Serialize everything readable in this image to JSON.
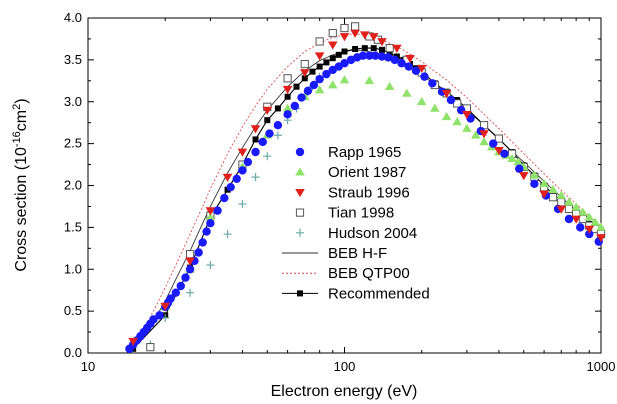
{
  "chart_data": {
    "type": "scatter",
    "title": "",
    "xlabel": "Electron energy (eV)",
    "ylabel": {
      "prefix": "Cross section (10",
      "exp1": "-16",
      "mid": "cm",
      "exp2": "2",
      "suffix": ")"
    },
    "xscale": "log",
    "xlim": [
      10,
      1000
    ],
    "ylim": [
      0.0,
      4.0
    ],
    "x_ticks": [
      "10",
      "100",
      "1000"
    ],
    "y_ticks": [
      "0.0",
      "0.5",
      "1.0",
      "1.5",
      "2.0",
      "2.5",
      "3.0",
      "3.5",
      "4.0"
    ],
    "legend_position": "center",
    "series": [
      {
        "name": "Rapp 1965",
        "marker": "circle",
        "color": "#1a1aff",
        "points": [
          [
            14.5,
            0.05
          ],
          [
            15,
            0.1
          ],
          [
            15.5,
            0.15
          ],
          [
            16,
            0.2
          ],
          [
            16.5,
            0.25
          ],
          [
            17,
            0.3
          ],
          [
            17.5,
            0.35
          ],
          [
            18,
            0.4
          ],
          [
            19,
            0.45
          ],
          [
            20,
            0.55
          ],
          [
            20.5,
            0.6
          ],
          [
            21,
            0.65
          ],
          [
            22,
            0.72
          ],
          [
            23,
            0.8
          ],
          [
            24,
            0.9
          ],
          [
            25,
            1.0
          ],
          [
            26,
            1.1
          ],
          [
            27,
            1.2
          ],
          [
            28,
            1.32
          ],
          [
            29,
            1.45
          ],
          [
            30,
            1.55
          ],
          [
            32,
            1.7
          ],
          [
            34,
            1.85
          ],
          [
            36,
            1.98
          ],
          [
            38,
            2.08
          ],
          [
            40,
            2.18
          ],
          [
            42,
            2.28
          ],
          [
            45,
            2.4
          ],
          [
            48,
            2.52
          ],
          [
            51,
            2.62
          ],
          [
            55,
            2.72
          ],
          [
            60,
            2.85
          ],
          [
            64,
            2.95
          ],
          [
            68,
            3.05
          ],
          [
            72,
            3.13
          ],
          [
            76,
            3.2
          ],
          [
            80,
            3.27
          ],
          [
            85,
            3.33
          ],
          [
            90,
            3.38
          ],
          [
            95,
            3.42
          ],
          [
            100,
            3.46
          ],
          [
            106,
            3.5
          ],
          [
            112,
            3.53
          ],
          [
            118,
            3.55
          ],
          [
            125,
            3.55
          ],
          [
            132,
            3.55
          ],
          [
            140,
            3.54
          ],
          [
            148,
            3.53
          ],
          [
            157,
            3.5
          ],
          [
            167,
            3.46
          ],
          [
            178,
            3.42
          ],
          [
            190,
            3.37
          ],
          [
            205,
            3.3
          ],
          [
            220,
            3.22
          ],
          [
            240,
            3.12
          ],
          [
            260,
            3.02
          ],
          [
            285,
            2.9
          ],
          [
            310,
            2.8
          ],
          [
            340,
            2.65
          ],
          [
            380,
            2.5
          ],
          [
            420,
            2.38
          ],
          [
            480,
            2.2
          ],
          [
            550,
            2.02
          ],
          [
            610,
            1.88
          ],
          [
            680,
            1.72
          ],
          [
            750,
            1.6
          ],
          [
            830,
            1.5
          ],
          [
            900,
            1.42
          ],
          [
            980,
            1.33
          ]
        ]
      },
      {
        "name": "Orient 1987",
        "marker": "triangle-up",
        "color": "#8fe36a",
        "points": [
          [
            20,
            0.55
          ],
          [
            25,
            1.0
          ],
          [
            30,
            1.62
          ],
          [
            40,
            2.22
          ],
          [
            50,
            2.6
          ],
          [
            60,
            2.92
          ],
          [
            70,
            3.06
          ],
          [
            80,
            3.14
          ],
          [
            90,
            3.2
          ],
          [
            100,
            3.26
          ],
          [
            125,
            3.25
          ],
          [
            150,
            3.18
          ],
          [
            175,
            3.1
          ],
          [
            200,
            3.0
          ],
          [
            225,
            2.92
          ],
          [
            250,
            2.82
          ],
          [
            275,
            2.76
          ],
          [
            300,
            2.68
          ],
          [
            325,
            2.6
          ],
          [
            350,
            2.52
          ],
          [
            375,
            2.46
          ],
          [
            400,
            2.4
          ],
          [
            425,
            2.36
          ],
          [
            450,
            2.32
          ],
          [
            475,
            2.28
          ],
          [
            500,
            2.22
          ],
          [
            550,
            2.12
          ],
          [
            600,
            2.02
          ],
          [
            650,
            1.95
          ],
          [
            700,
            1.88
          ],
          [
            750,
            1.8
          ],
          [
            800,
            1.74
          ],
          [
            850,
            1.68
          ],
          [
            900,
            1.62
          ],
          [
            950,
            1.56
          ],
          [
            1000,
            1.5
          ]
        ]
      },
      {
        "name": "Straub 1996",
        "marker": "triangle-down",
        "color": "#e0201a",
        "points": [
          [
            15,
            0.14
          ],
          [
            20,
            0.56
          ],
          [
            25,
            1.1
          ],
          [
            30,
            1.7
          ],
          [
            35,
            2.1
          ],
          [
            40,
            2.4
          ],
          [
            45,
            2.68
          ],
          [
            50,
            2.9
          ],
          [
            60,
            3.15
          ],
          [
            70,
            3.35
          ],
          [
            80,
            3.55
          ],
          [
            90,
            3.68
          ],
          [
            100,
            3.78
          ],
          [
            110,
            3.82
          ],
          [
            120,
            3.8
          ],
          [
            130,
            3.78
          ],
          [
            140,
            3.72
          ],
          [
            160,
            3.64
          ],
          [
            180,
            3.52
          ],
          [
            200,
            3.4
          ],
          [
            250,
            3.1
          ],
          [
            300,
            2.85
          ],
          [
            350,
            2.62
          ],
          [
            400,
            2.42
          ],
          [
            500,
            2.12
          ],
          [
            600,
            1.9
          ],
          [
            700,
            1.72
          ],
          [
            800,
            1.6
          ],
          [
            900,
            1.48
          ],
          [
            1000,
            1.38
          ]
        ]
      },
      {
        "name": "Tian 1998",
        "marker": "square-open",
        "color": "#555555",
        "points": [
          [
            17.5,
            0.07
          ],
          [
            25,
            1.18
          ],
          [
            30,
            1.64
          ],
          [
            40,
            2.25
          ],
          [
            50,
            2.94
          ],
          [
            60,
            3.28
          ],
          [
            70,
            3.45
          ],
          [
            80,
            3.72
          ],
          [
            90,
            3.82
          ],
          [
            100,
            3.88
          ],
          [
            110,
            3.9
          ],
          [
            125,
            3.78
          ],
          [
            135,
            3.74
          ],
          [
            150,
            3.64
          ],
          [
            175,
            3.5
          ],
          [
            200,
            3.35
          ],
          [
            225,
            3.2
          ],
          [
            250,
            3.1
          ],
          [
            275,
            2.98
          ],
          [
            300,
            2.92
          ],
          [
            350,
            2.72
          ],
          [
            400,
            2.56
          ],
          [
            450,
            2.38
          ],
          [
            500,
            2.22
          ],
          [
            550,
            2.1
          ],
          [
            600,
            1.98
          ],
          [
            650,
            1.86
          ],
          [
            700,
            1.8
          ],
          [
            750,
            1.72
          ],
          [
            800,
            1.66
          ],
          [
            850,
            1.6
          ],
          [
            900,
            1.52
          ],
          [
            950,
            1.48
          ],
          [
            1000,
            1.42
          ]
        ]
      },
      {
        "name": "Hudson 2004",
        "marker": "plus",
        "color": "#6aa8a8",
        "points": [
          [
            17.5,
            0.1
          ],
          [
            20,
            0.42
          ],
          [
            25,
            0.72
          ],
          [
            30,
            1.05
          ],
          [
            35,
            1.42
          ],
          [
            40,
            1.78
          ],
          [
            45,
            2.1
          ],
          [
            50,
            2.35
          ],
          [
            55,
            2.6
          ],
          [
            60,
            2.78
          ],
          [
            65,
            2.92
          ],
          [
            70,
            3.08
          ],
          [
            75,
            3.18
          ],
          [
            80,
            3.3
          ]
        ]
      },
      {
        "name": "BEB H-F",
        "marker": "line-solid",
        "color": "#333333",
        "points": [
          [
            14.5,
            0.0
          ],
          [
            16,
            0.15
          ],
          [
            18,
            0.38
          ],
          [
            20,
            0.62
          ],
          [
            22,
            0.88
          ],
          [
            25,
            1.22
          ],
          [
            28,
            1.55
          ],
          [
            30,
            1.75
          ],
          [
            35,
            2.15
          ],
          [
            40,
            2.45
          ],
          [
            45,
            2.7
          ],
          [
            50,
            2.9
          ],
          [
            60,
            3.18
          ],
          [
            70,
            3.37
          ],
          [
            80,
            3.49
          ],
          [
            90,
            3.56
          ],
          [
            100,
            3.6
          ],
          [
            110,
            3.62
          ],
          [
            120,
            3.61
          ],
          [
            140,
            3.56
          ],
          [
            160,
            3.48
          ],
          [
            180,
            3.4
          ],
          [
            200,
            3.32
          ],
          [
            250,
            3.1
          ],
          [
            300,
            2.9
          ],
          [
            350,
            2.72
          ],
          [
            400,
            2.55
          ],
          [
            500,
            2.28
          ],
          [
            600,
            2.05
          ],
          [
            700,
            1.86
          ],
          [
            800,
            1.7
          ],
          [
            900,
            1.58
          ],
          [
            1000,
            1.47
          ]
        ]
      },
      {
        "name": "BEB QTP00",
        "marker": "line-dotted",
        "color": "#e04a4a",
        "points": [
          [
            14.5,
            0.0
          ],
          [
            16,
            0.2
          ],
          [
            18,
            0.5
          ],
          [
            20,
            0.78
          ],
          [
            22,
            1.05
          ],
          [
            25,
            1.42
          ],
          [
            28,
            1.75
          ],
          [
            30,
            1.96
          ],
          [
            35,
            2.38
          ],
          [
            40,
            2.7
          ],
          [
            45,
            2.95
          ],
          [
            50,
            3.15
          ],
          [
            60,
            3.42
          ],
          [
            70,
            3.6
          ],
          [
            80,
            3.7
          ],
          [
            90,
            3.77
          ],
          [
            100,
            3.8
          ],
          [
            110,
            3.81
          ],
          [
            120,
            3.8
          ],
          [
            140,
            3.74
          ],
          [
            160,
            3.66
          ],
          [
            180,
            3.57
          ],
          [
            200,
            3.48
          ],
          [
            250,
            3.26
          ],
          [
            300,
            3.05
          ],
          [
            350,
            2.85
          ],
          [
            400,
            2.68
          ],
          [
            500,
            2.38
          ],
          [
            600,
            2.14
          ],
          [
            700,
            1.94
          ],
          [
            800,
            1.78
          ],
          [
            900,
            1.64
          ],
          [
            1000,
            1.52
          ]
        ]
      },
      {
        "name": "Recommended",
        "marker": "square-filled-line",
        "color": "#000000",
        "points": [
          [
            15,
            0.05
          ],
          [
            20,
            0.45
          ],
          [
            25,
            1.02
          ],
          [
            30,
            1.62
          ],
          [
            35,
            1.95
          ],
          [
            40,
            2.25
          ],
          [
            45,
            2.55
          ],
          [
            50,
            2.78
          ],
          [
            55,
            2.92
          ],
          [
            60,
            3.06
          ],
          [
            65,
            3.18
          ],
          [
            70,
            3.28
          ],
          [
            75,
            3.36
          ],
          [
            80,
            3.42
          ],
          [
            85,
            3.47
          ],
          [
            90,
            3.52
          ],
          [
            95,
            3.56
          ],
          [
            100,
            3.6
          ],
          [
            110,
            3.63
          ],
          [
            120,
            3.64
          ],
          [
            130,
            3.64
          ],
          [
            140,
            3.62
          ],
          [
            150,
            3.58
          ],
          [
            160,
            3.54
          ],
          [
            170,
            3.5
          ],
          [
            180,
            3.45
          ],
          [
            190,
            3.4
          ],
          [
            200,
            3.36
          ],
          [
            225,
            3.22
          ],
          [
            250,
            3.12
          ],
          [
            275,
            3.02
          ],
          [
            300,
            2.92
          ],
          [
            350,
            2.72
          ],
          [
            400,
            2.56
          ],
          [
            450,
            2.4
          ],
          [
            500,
            2.24
          ],
          [
            550,
            2.12
          ],
          [
            600,
            2.0
          ],
          [
            650,
            1.9
          ],
          [
            700,
            1.82
          ],
          [
            750,
            1.74
          ],
          [
            800,
            1.66
          ],
          [
            850,
            1.6
          ],
          [
            900,
            1.54
          ],
          [
            950,
            1.48
          ],
          [
            1000,
            1.42
          ]
        ]
      }
    ]
  }
}
